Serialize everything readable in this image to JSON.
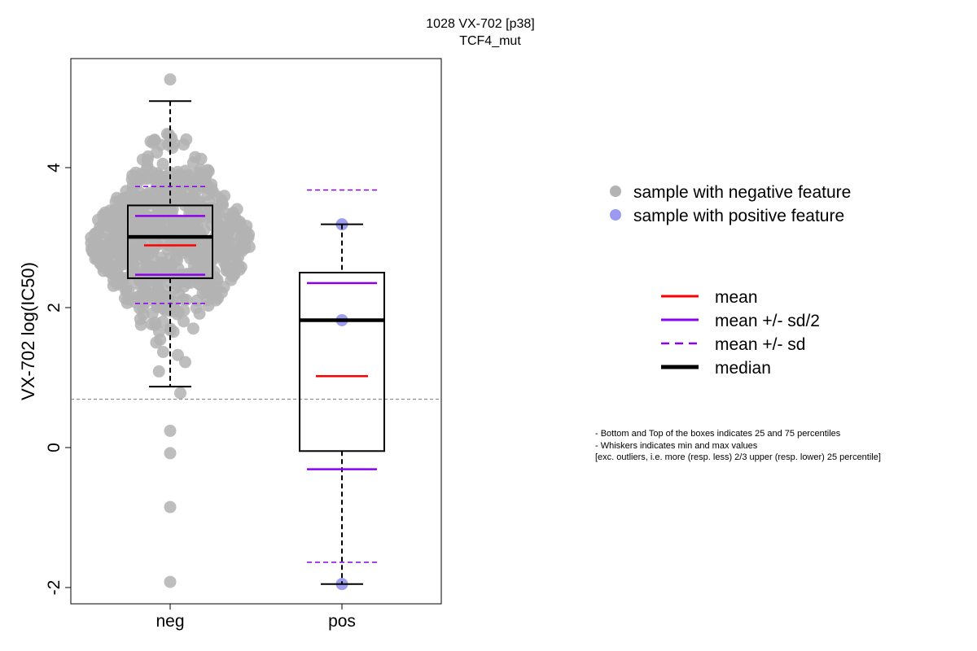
{
  "chart_data": {
    "type": "box",
    "title_line1": "1028 VX-702 [p38]",
    "title_line2": "TCF4_mut",
    "ylabel": "VX-702 log(IC50)",
    "xlabel": "",
    "ylim": [
      -2.2,
      5.6
    ],
    "y_ticks": [
      -2,
      0,
      2,
      4
    ],
    "y_tick_labels": [
      "-2",
      "0",
      "2",
      "4"
    ],
    "categories": [
      "neg",
      "pos"
    ],
    "reference_line": 0.69,
    "groups": [
      {
        "name": "neg",
        "min": 0.87,
        "q1": 2.42,
        "median": 3.01,
        "q3": 3.46,
        "max": 4.95,
        "mean": 2.89,
        "mean_minus_half_sd": 2.47,
        "mean_plus_half_sd": 3.31,
        "mean_minus_sd": 2.06,
        "mean_plus_sd": 3.73,
        "point_color": "#b3b3b3",
        "outliers": [
          0.24,
          -0.08,
          -0.85,
          -1.92,
          5.26
        ]
      },
      {
        "name": "pos",
        "min": -1.95,
        "q1": -0.05,
        "median": 1.82,
        "q3": 2.5,
        "max": 3.19,
        "mean": 1.02,
        "mean_minus_half_sd": -0.31,
        "mean_plus_half_sd": 2.35,
        "mean_minus_sd": -1.64,
        "mean_plus_sd": 3.68,
        "point_color": "#9a9af0",
        "points": [
          3.19,
          1.82,
          -1.95
        ]
      }
    ],
    "colors": {
      "mean": "#ff0000",
      "sd": "#8b00ee",
      "median": "#000000",
      "reference": "#777777"
    },
    "legend_points": [
      {
        "label": "sample with negative feature",
        "color": "#b3b3b3"
      },
      {
        "label": "sample with positive feature",
        "color": "#9a9af0"
      }
    ],
    "legend_lines": [
      {
        "label": "mean",
        "color": "#ff0000",
        "style": "solid"
      },
      {
        "label": "mean +/- sd/2",
        "color": "#8b00ee",
        "style": "solid"
      },
      {
        "label": "mean +/- sd",
        "color": "#8b00ee",
        "style": "dashed"
      },
      {
        "label": "median",
        "color": "#000000",
        "style": "thick"
      }
    ],
    "notes": [
      "- Bottom and Top of the boxes indicates 25 and 75 percentiles",
      "- Whiskers indicates min and max values",
      "[exc. outliers, i.e. more (resp. less) 2/3 upper (resp. lower) 25 percentile]"
    ]
  }
}
